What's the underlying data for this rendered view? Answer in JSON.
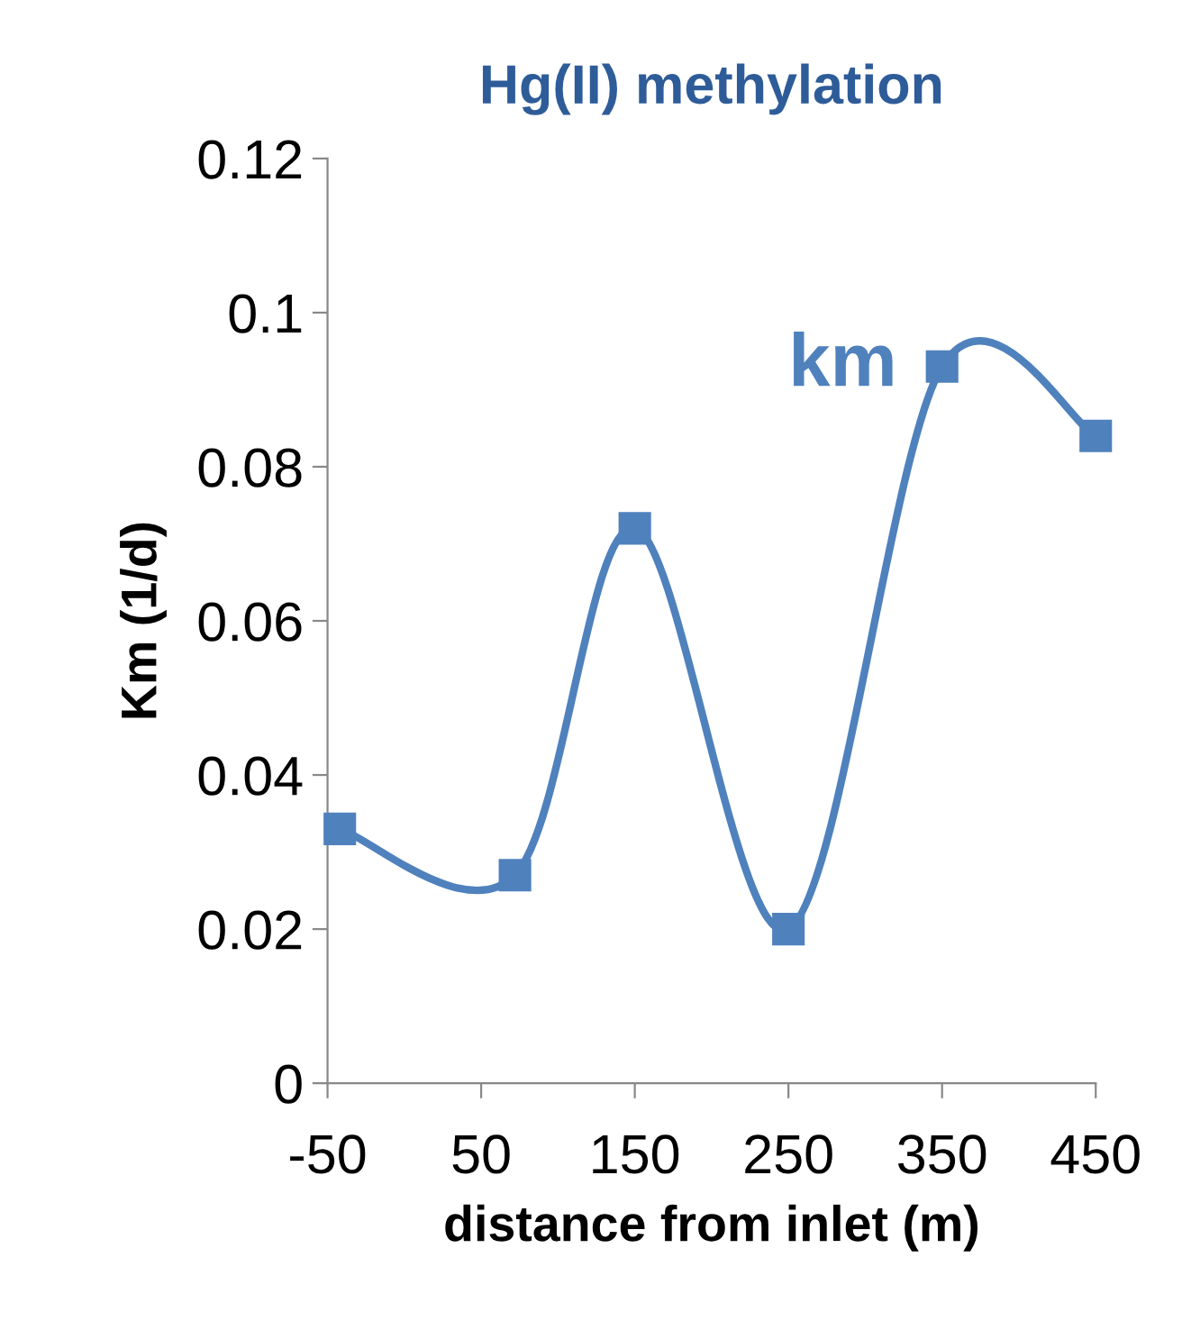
{
  "chart_data": {
    "type": "line",
    "title": "Hg(II) methylation",
    "xlabel": "distance from inlet (m)",
    "ylabel": "Km (1/d)",
    "series": [
      {
        "name": "km",
        "color": "#4f81bd",
        "x": [
          -42,
          72,
          150,
          250,
          350,
          450
        ],
        "values": [
          0.033,
          0.027,
          0.072,
          0.02,
          0.093,
          0.084
        ]
      }
    ],
    "xlim": [
      -50,
      450
    ],
    "xticks": [
      -50,
      50,
      150,
      250,
      350,
      450
    ],
    "ylim": [
      0,
      0.12
    ],
    "yticks": [
      0,
      0.02,
      0.04,
      0.06,
      0.08,
      0.1,
      0.12
    ],
    "marker": "square",
    "line_style": "solid",
    "grid": false,
    "legend": false
  }
}
